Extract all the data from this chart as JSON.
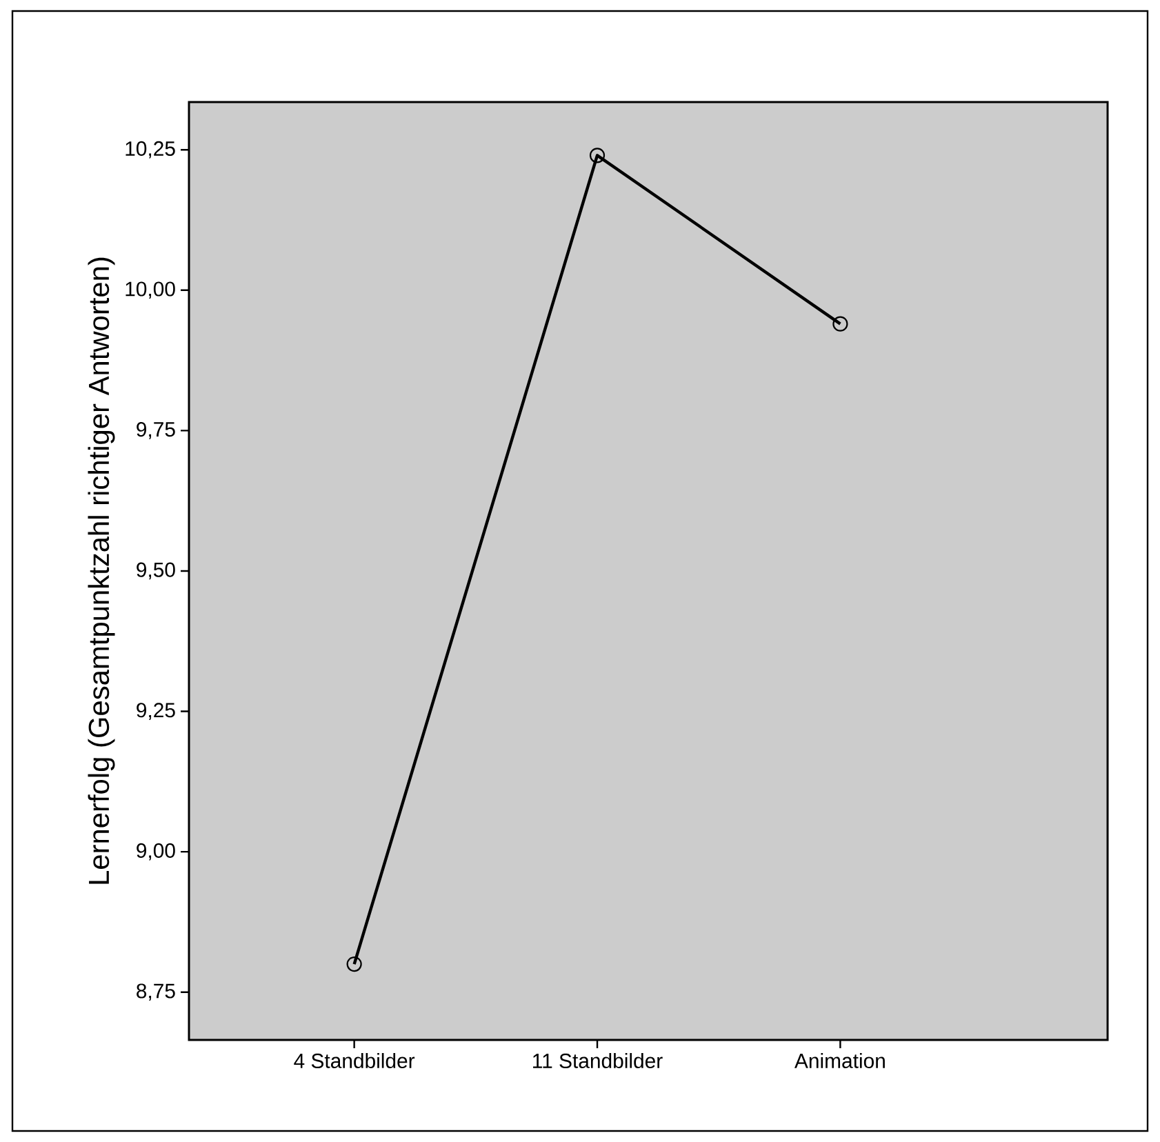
{
  "chart_data": {
    "type": "line",
    "ylabel": "Lernerfolg (Gesamtpunktzahl richtiger Antworten)",
    "categories": [
      "4 Standbilder",
      "11 Standbilder",
      "Animation"
    ],
    "series": [
      {
        "color": "#000000",
        "values": [
          8.8,
          10.24,
          9.94
        ]
      }
    ],
    "ylim": [
      8.665,
      10.335
    ],
    "yticks": [
      {
        "value": 8.75,
        "label": "8,75"
      },
      {
        "value": 9.0,
        "label": "9,00"
      },
      {
        "value": 9.25,
        "label": "9,25"
      },
      {
        "value": 9.5,
        "label": "9,50"
      },
      {
        "value": 9.75,
        "label": "9,75"
      },
      {
        "value": 10.0,
        "label": "10,00"
      },
      {
        "value": 10.25,
        "label": "10,25"
      }
    ],
    "grid": false,
    "marker": "circle",
    "line_style": "solid"
  }
}
